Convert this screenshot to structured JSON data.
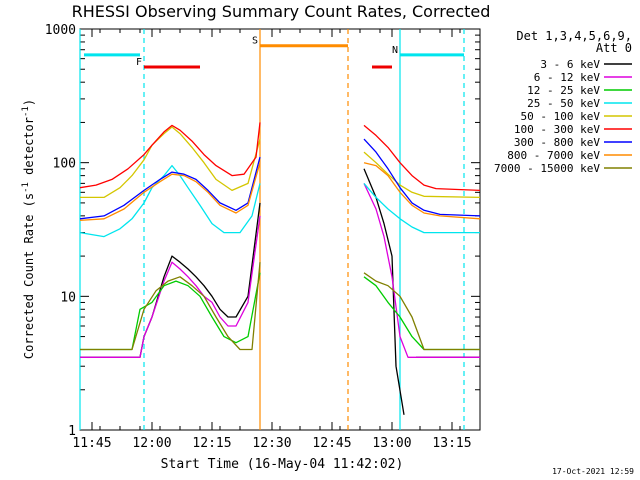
{
  "chart_data": {
    "type": "line",
    "title": "RHESSI Observing Summary Count Rates, Corrected",
    "xlabel": "Start Time (16-May-04 11:42:02)",
    "ylabel": "Corrected Count Rate (s",
    "ylabel_sup1": "-1",
    "ylabel_mid": " detector",
    "ylabel_sup2": "-1",
    "ylabel_end": ")",
    "y_scale": "log",
    "ylim": [
      1,
      1000
    ],
    "xlim": [
      "11:42",
      "13:22"
    ],
    "x_ticks": [
      "11:45",
      "12:00",
      "12:15",
      "12:30",
      "12:45",
      "13:00",
      "13:15"
    ],
    "y_ticks": [
      "1",
      "10",
      "100",
      "1000"
    ],
    "legend_header": [
      "Det 1,3,4,5,6,9,",
      "Att 0"
    ],
    "series": [
      {
        "name": "3 - 6 keV",
        "color": "#000000",
        "points": [
          [
            "11:42",
            3.5
          ],
          [
            "11:57",
            3.5
          ],
          [
            "11:58",
            5
          ],
          [
            "12:00",
            7
          ],
          [
            "12:03",
            14
          ],
          [
            "12:05",
            20
          ],
          [
            "12:07",
            18
          ],
          [
            "12:09",
            16
          ],
          [
            "12:11",
            14
          ],
          [
            "12:13",
            12
          ],
          [
            "12:15",
            10
          ],
          [
            "12:17",
            8
          ],
          [
            "12:19",
            7
          ],
          [
            "12:21",
            7
          ],
          [
            "12:24",
            10
          ],
          [
            "12:27",
            50
          ],
          null,
          [
            "12:53",
            90
          ],
          [
            "12:56",
            55
          ],
          [
            "12:58",
            35
          ],
          [
            "13:00",
            20
          ],
          [
            "13:01",
            3
          ],
          [
            "13:03",
            1.3
          ],
          null,
          [
            "13:06",
            3.5
          ],
          [
            "13:22",
            3.5
          ]
        ]
      },
      {
        "name": "6 - 12 keV",
        "color": "#dd00dd",
        "points": [
          [
            "11:42",
            3.5
          ],
          [
            "11:57",
            3.5
          ],
          [
            "11:58",
            5
          ],
          [
            "12:00",
            7
          ],
          [
            "12:03",
            13
          ],
          [
            "12:05",
            18
          ],
          [
            "12:07",
            16
          ],
          [
            "12:09",
            14
          ],
          [
            "12:11",
            12
          ],
          [
            "12:13",
            10
          ],
          [
            "12:15",
            9
          ],
          [
            "12:17",
            7
          ],
          [
            "12:19",
            6
          ],
          [
            "12:21",
            6
          ],
          [
            "12:24",
            9
          ],
          [
            "12:27",
            40
          ],
          null,
          [
            "12:53",
            70
          ],
          [
            "12:56",
            45
          ],
          [
            "12:58",
            28
          ],
          [
            "13:00",
            14
          ],
          [
            "13:02",
            5
          ],
          [
            "13:04",
            3.5
          ],
          [
            "13:22",
            3.5
          ]
        ]
      },
      {
        "name": "12 - 25 keV",
        "color": "#00cc00",
        "points": [
          [
            "11:42",
            4
          ],
          [
            "11:55",
            4
          ],
          [
            "11:57",
            8
          ],
          [
            "12:00",
            9
          ],
          [
            "12:03",
            12
          ],
          [
            "12:06",
            13
          ],
          [
            "12:09",
            12
          ],
          [
            "12:12",
            10
          ],
          [
            "12:15",
            7
          ],
          [
            "12:18",
            5
          ],
          [
            "12:21",
            4.5
          ],
          [
            "12:24",
            5
          ],
          [
            "12:27",
            15
          ],
          null,
          [
            "12:53",
            14
          ],
          [
            "12:56",
            12
          ],
          [
            "12:59",
            9
          ],
          [
            "13:02",
            7
          ],
          [
            "13:05",
            5
          ],
          [
            "13:08",
            4
          ],
          [
            "13:22",
            4
          ]
        ]
      },
      {
        "name": "25 - 50 keV",
        "color": "#00e5ee",
        "points": [
          [
            "11:42",
            30
          ],
          [
            "11:48",
            28
          ],
          [
            "11:52",
            32
          ],
          [
            "11:55",
            38
          ],
          [
            "11:58",
            50
          ],
          [
            "12:00",
            65
          ],
          [
            "12:03",
            80
          ],
          [
            "12:05",
            95
          ],
          [
            "12:07",
            80
          ],
          [
            "12:09",
            65
          ],
          [
            "12:12",
            48
          ],
          [
            "12:15",
            35
          ],
          [
            "12:18",
            30
          ],
          [
            "12:22",
            30
          ],
          [
            "12:25",
            40
          ],
          [
            "12:27",
            70
          ],
          null,
          [
            "12:53",
            70
          ],
          [
            "12:56",
            55
          ],
          [
            "12:59",
            45
          ],
          [
            "13:02",
            38
          ],
          [
            "13:05",
            33
          ],
          [
            "13:08",
            30
          ],
          [
            "13:22",
            30
          ]
        ]
      },
      {
        "name": "50 - 100 keV",
        "color": "#d4c600",
        "points": [
          [
            "11:42",
            55
          ],
          [
            "11:48",
            55
          ],
          [
            "11:52",
            65
          ],
          [
            "11:55",
            80
          ],
          [
            "11:58",
            105
          ],
          [
            "12:00",
            135
          ],
          [
            "12:03",
            165
          ],
          [
            "12:05",
            185
          ],
          [
            "12:07",
            165
          ],
          [
            "12:10",
            130
          ],
          [
            "12:13",
            100
          ],
          [
            "12:16",
            75
          ],
          [
            "12:20",
            62
          ],
          [
            "12:24",
            70
          ],
          [
            "12:27",
            150
          ],
          null,
          [
            "12:53",
            120
          ],
          [
            "12:56",
            100
          ],
          [
            "12:59",
            82
          ],
          [
            "13:02",
            68
          ],
          [
            "13:05",
            60
          ],
          [
            "13:08",
            56
          ],
          [
            "13:22",
            55
          ]
        ]
      },
      {
        "name": "100 - 300 keV",
        "color": "#ff0000",
        "points": [
          [
            "11:42",
            65
          ],
          [
            "11:46",
            68
          ],
          [
            "11:50",
            75
          ],
          [
            "11:54",
            90
          ],
          [
            "11:58",
            115
          ],
          [
            "12:00",
            135
          ],
          [
            "12:03",
            170
          ],
          [
            "12:05",
            190
          ],
          [
            "12:07",
            175
          ],
          [
            "12:10",
            145
          ],
          [
            "12:13",
            115
          ],
          [
            "12:16",
            95
          ],
          [
            "12:20",
            80
          ],
          [
            "12:23",
            82
          ],
          [
            "12:26",
            110
          ],
          [
            "12:27",
            200
          ],
          null,
          [
            "12:53",
            190
          ],
          [
            "12:56",
            160
          ],
          [
            "12:59",
            130
          ],
          [
            "13:02",
            100
          ],
          [
            "13:05",
            80
          ],
          [
            "13:08",
            68
          ],
          [
            "13:11",
            64
          ],
          [
            "13:22",
            62
          ]
        ]
      },
      {
        "name": "300 - 800 keV",
        "color": "#0000ff",
        "points": [
          [
            "11:42",
            38
          ],
          [
            "11:48",
            40
          ],
          [
            "11:53",
            48
          ],
          [
            "11:58",
            62
          ],
          [
            "12:02",
            75
          ],
          [
            "12:05",
            85
          ],
          [
            "12:08",
            82
          ],
          [
            "12:11",
            75
          ],
          [
            "12:14",
            62
          ],
          [
            "12:17",
            50
          ],
          [
            "12:21",
            44
          ],
          [
            "12:24",
            50
          ],
          [
            "12:27",
            110
          ],
          null,
          [
            "12:53",
            150
          ],
          [
            "12:56",
            120
          ],
          [
            "12:59",
            90
          ],
          [
            "13:02",
            65
          ],
          [
            "13:05",
            50
          ],
          [
            "13:08",
            44
          ],
          [
            "13:12",
            41
          ],
          [
            "13:22",
            40
          ]
        ]
      },
      {
        "name": "800 - 7000 keV",
        "color": "#ff8c00",
        "points": [
          [
            "11:42",
            37
          ],
          [
            "11:48",
            38
          ],
          [
            "11:53",
            45
          ],
          [
            "11:58",
            60
          ],
          [
            "12:02",
            72
          ],
          [
            "12:05",
            82
          ],
          [
            "12:08",
            80
          ],
          [
            "12:11",
            72
          ],
          [
            "12:14",
            60
          ],
          [
            "12:17",
            48
          ],
          [
            "12:21",
            42
          ],
          [
            "12:24",
            48
          ],
          [
            "12:27",
            100
          ],
          null,
          [
            "12:53",
            100
          ],
          [
            "12:56",
            95
          ],
          [
            "12:59",
            80
          ],
          [
            "13:02",
            60
          ],
          [
            "13:05",
            48
          ],
          [
            "13:08",
            42
          ],
          [
            "13:12",
            40
          ],
          [
            "13:22",
            38
          ]
        ]
      },
      {
        "name": "7000 - 15000 keV",
        "color": "#808000",
        "points": [
          [
            "11:42",
            4
          ],
          [
            "11:55",
            4
          ],
          [
            "11:58",
            8
          ],
          [
            "12:01",
            11
          ],
          [
            "12:04",
            13
          ],
          [
            "12:07",
            14
          ],
          [
            "12:10",
            12
          ],
          [
            "12:13",
            10
          ],
          [
            "12:16",
            7
          ],
          [
            "12:19",
            5
          ],
          [
            "12:22",
            4
          ],
          [
            "12:25",
            4
          ],
          [
            "12:27",
            18
          ],
          null,
          [
            "12:53",
            15
          ],
          [
            "12:56",
            13
          ],
          [
            "12:59",
            12
          ],
          [
            "13:02",
            10
          ],
          [
            "13:05",
            7
          ],
          [
            "13:08",
            4
          ],
          [
            "13:22",
            4
          ]
        ]
      }
    ],
    "annotations": {
      "vlines": [
        {
          "time": "11:42",
          "color": "#00e5ee",
          "style": "solid"
        },
        {
          "time": "11:58",
          "color": "#00e5ee",
          "style": "dashed"
        },
        {
          "time": "12:27",
          "color": "#ff8c00",
          "style": "solid"
        },
        {
          "time": "12:49",
          "color": "#ff8c00",
          "style": "dashed"
        },
        {
          "time": "13:02",
          "color": "#00e5ee",
          "style": "solid"
        },
        {
          "time": "13:18",
          "color": "#00e5ee",
          "style": "dashed"
        }
      ],
      "bars": [
        {
          "label": "",
          "color": "#00e5ee",
          "start": "11:43",
          "end": "11:57",
          "level": 640
        },
        {
          "label": "N",
          "color": "#00e5ee",
          "start": "13:02",
          "end": "13:18",
          "level": 640
        },
        {
          "label": "F",
          "color": "#ee0000",
          "start": "11:58",
          "end": "12:12",
          "level": 520
        },
        {
          "label": "",
          "color": "#ee0000",
          "start": "12:55",
          "end": "13:00",
          "level": 520
        },
        {
          "label": "S",
          "color": "#ff8c00",
          "start": "12:27",
          "end": "12:49",
          "level": 750
        }
      ]
    }
  },
  "footer_timestamp": "17-Oct-2021 12:59"
}
